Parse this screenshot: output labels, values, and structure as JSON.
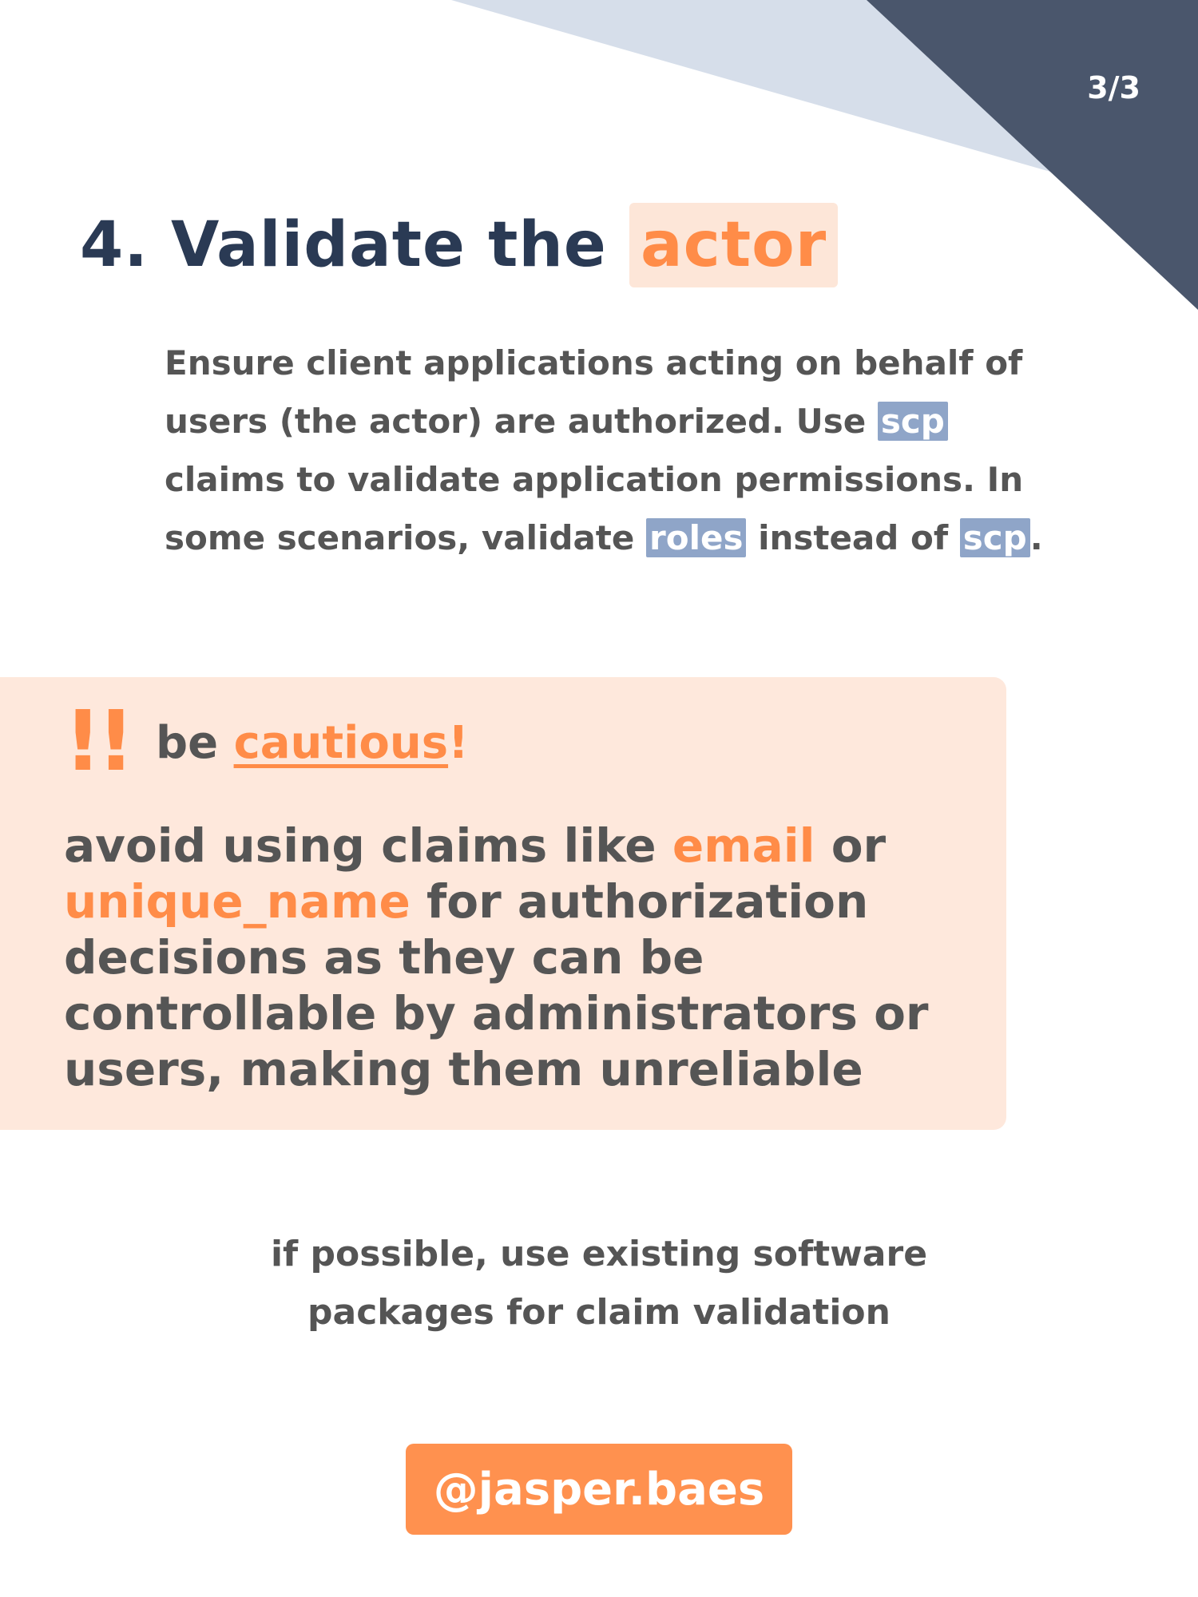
{
  "page_indicator": "3/3",
  "colors": {
    "triangle_light": "#d6deea",
    "triangle_dark": "#4a566c",
    "accent_orange": "#ff8c48",
    "highlight_peach": "#fde6d8",
    "chip_blue": "#8fa5c8",
    "heading_navy": "#2a3a54",
    "body_gray": "#555555"
  },
  "heading": {
    "prefix": "4. Validate the ",
    "highlight": "actor"
  },
  "intro": {
    "text1": "Ensure client applications acting on behalf of users (the actor) are authorized. Use ",
    "chip1": "scp",
    "text2": " claims to validate application permissions. In some scenarios, validate ",
    "chip2": "roles",
    "text3": " instead of ",
    "chip3": "scp",
    "text4": "."
  },
  "callout": {
    "icon": "double-exclamation-icon",
    "icon_glyph": "!!",
    "lead": "be ",
    "emphasis": "cautious",
    "trail": "!",
    "text1": "avoid using claims like ",
    "claim1": "email",
    "text2": " or ",
    "claim2": "unique_name",
    "text3": " for authorization decisions as they can be controllable by administrators or users, making them unreliable"
  },
  "tip": {
    "line1": "if possible, use existing software",
    "line2": "packages for claim validation"
  },
  "handle": "@jasper.baes"
}
